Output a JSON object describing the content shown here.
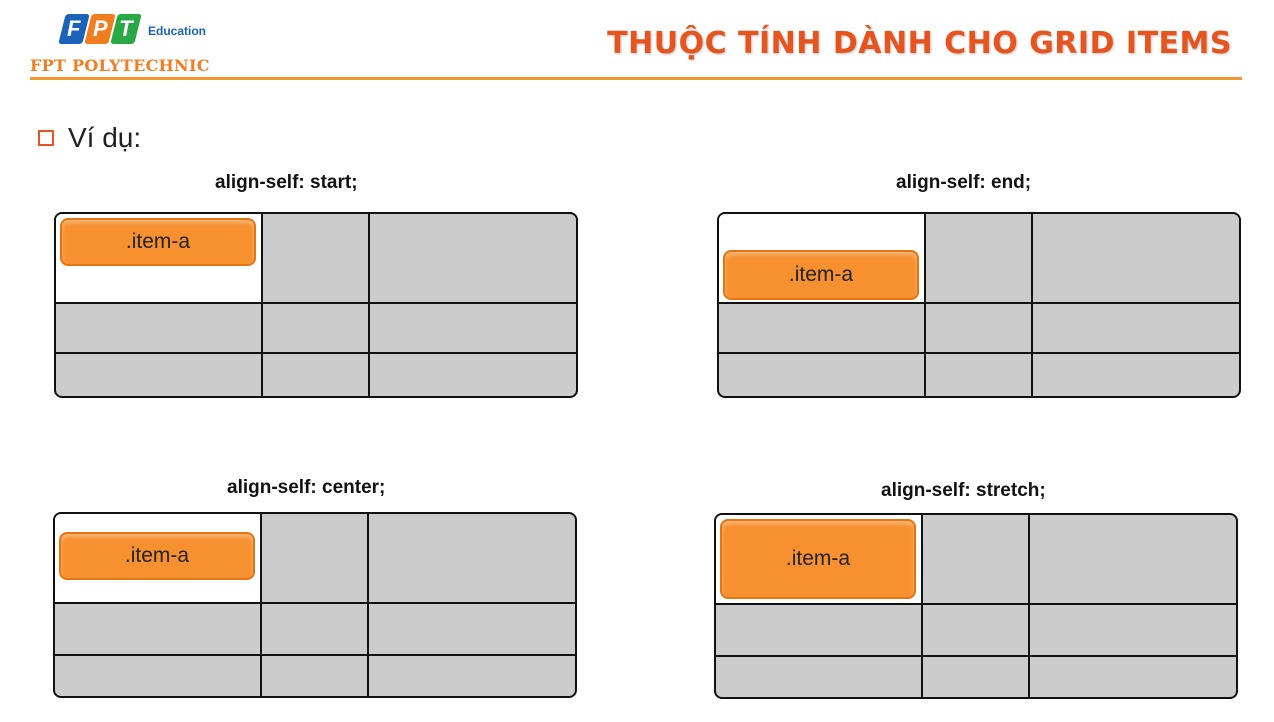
{
  "header": {
    "logo": {
      "letters": [
        "F",
        "P",
        "T"
      ],
      "letter_colors": [
        "#1b63b8",
        "#f07d1f",
        "#2aa845"
      ],
      "edu_label": "Education",
      "school_name": "FPT POLYTECHNIC"
    },
    "title": "THUỘC TÍNH DÀNH CHO GRID ITEMS"
  },
  "bullet": {
    "text": "Ví dụ:"
  },
  "examples": [
    {
      "caption": "align-self: start;",
      "item_label": ".item-a"
    },
    {
      "caption": "align-self: end;",
      "item_label": ".item-a"
    },
    {
      "caption": "align-self: center;",
      "item_label": ".item-a"
    },
    {
      "caption": "align-self: stretch;",
      "item_label": ".item-a"
    }
  ],
  "colors": {
    "accent": "#f3962c",
    "title": "#e8541e",
    "item": "#f7902f",
    "cell": "#cccccc"
  }
}
